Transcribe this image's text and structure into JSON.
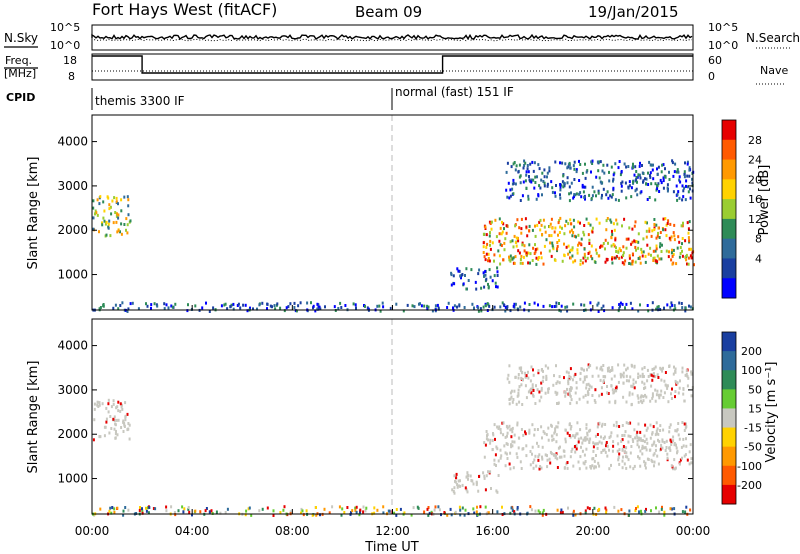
{
  "header": {
    "station": "Fort Hays West (fitACF)",
    "beam": "Beam 09",
    "date": "19/Jan/2015"
  },
  "panels": {
    "nsky_label": "N.Sky",
    "nsearch_label": "N.Search",
    "nsky_ticks": [
      "10^5",
      "10^0"
    ],
    "nsky_right_ticks": [
      "10^5",
      "10^0"
    ],
    "freq_label": "Freq.",
    "freq_unit": "[MHz]",
    "freq_ticks": [
      "18",
      "8"
    ],
    "nave_label": "Nave",
    "nave_ticks": [
      "60",
      "0"
    ],
    "cpid_label": "CPID",
    "cpid_modes": [
      {
        "label": "themis 3300 IF",
        "start_hour": 0
      },
      {
        "label": "normal (fast) 151 IF",
        "start_hour": 12
      }
    ],
    "freq_levels": [
      {
        "from": 0,
        "to": 2,
        "level": "18"
      },
      {
        "from": 2,
        "to": 14,
        "level": "8"
      },
      {
        "from": 14,
        "to": 24,
        "level": "18"
      }
    ]
  },
  "chart_data": [
    {
      "type": "heatmap",
      "title": "",
      "ylabel": "Slant Range [km]",
      "ylim": [
        200,
        4600
      ],
      "yticks": [
        "4000",
        "3000",
        "2000",
        "1000"
      ],
      "xlim": [
        0,
        24
      ],
      "colorbar_label": "Power [dB]",
      "colorbar_ticks": [
        "28",
        "24",
        "20",
        "16",
        "12",
        "8",
        "4"
      ],
      "colorbar_colors": [
        "#e60000",
        "#ff5a00",
        "#ff9900",
        "#ffd200",
        "#9acd32",
        "#2e8b57",
        "#2f6b9a",
        "#1a3fa0",
        "#0000ff"
      ],
      "features": [
        {
          "hours": [
            0.0,
            1.5
          ],
          "range_km": [
            1900,
            2800
          ],
          "power_db": 18
        },
        {
          "hours": [
            15.6,
            24.0
          ],
          "range_km": [
            1250,
            2300
          ],
          "power_db": 24
        },
        {
          "hours": [
            16.5,
            24.0
          ],
          "range_km": [
            2700,
            3600
          ],
          "power_db": 6
        },
        {
          "hours": [
            14.3,
            16.2
          ],
          "range_km": [
            700,
            1200
          ],
          "power_db": 10
        },
        {
          "hours": [
            0.0,
            24.0
          ],
          "range_km": [
            200,
            400
          ],
          "power_db": 6
        }
      ]
    },
    {
      "type": "heatmap",
      "title": "",
      "ylabel": "Slant Range [km]",
      "ylim": [
        200,
        4600
      ],
      "yticks": [
        "4000",
        "3000",
        "2000",
        "1000"
      ],
      "xlim": [
        0,
        24
      ],
      "xticks": [
        "00:00",
        "04:00",
        "08:00",
        "12:00",
        "16:00",
        "20:00",
        "00:00"
      ],
      "xlabel": "Time UT",
      "colorbar_label": "Velocity [m s⁻¹]",
      "colorbar_ticks": [
        "200",
        "100",
        "50",
        "15",
        "-15",
        "-50",
        "-100",
        "-200"
      ],
      "colorbar_colors": [
        "#1a3fa0",
        "#2e6b9a",
        "#2e8b57",
        "#66cc33",
        "#c8c8c0",
        "#ffd200",
        "#ff9900",
        "#ff5a00",
        "#e60000"
      ],
      "features": [
        {
          "hours": [
            0.0,
            1.5
          ],
          "range_km": [
            1900,
            2800
          ],
          "velocity": 0
        },
        {
          "hours": [
            15.6,
            24.0
          ],
          "range_km": [
            1250,
            2300
          ],
          "velocity": 0
        },
        {
          "hours": [
            16.5,
            24.0
          ],
          "range_km": [
            2700,
            3600
          ],
          "velocity": 0
        },
        {
          "hours": [
            14.3,
            16.2
          ],
          "range_km": [
            700,
            1200
          ],
          "velocity": 0
        },
        {
          "hours": [
            0.0,
            24.0
          ],
          "range_km": [
            200,
            400
          ],
          "velocity": 40
        }
      ]
    }
  ]
}
